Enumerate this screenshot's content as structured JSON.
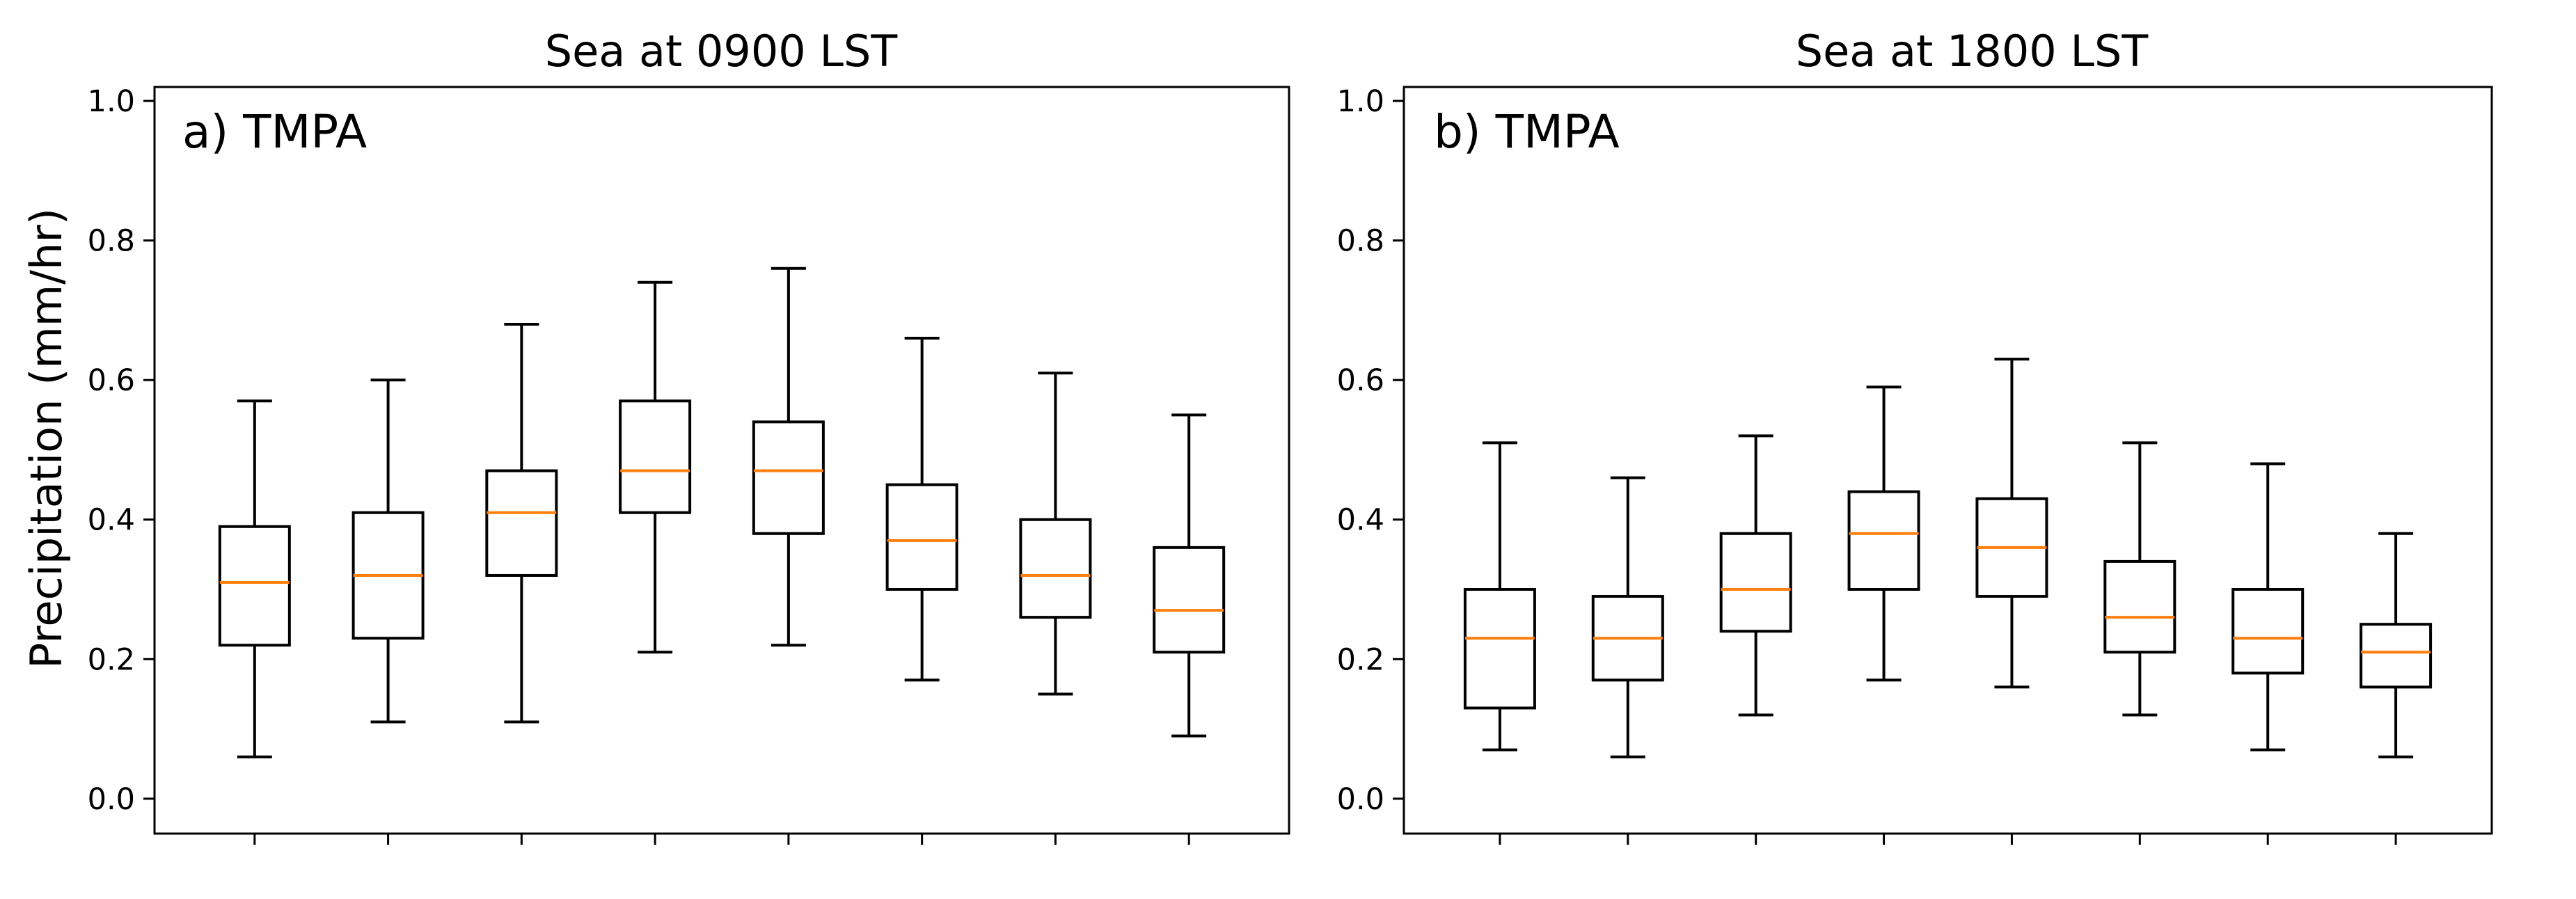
{
  "ylabel": "Precipitation (mm/hr)",
  "chart_data": [
    {
      "type": "box",
      "title": "Sea at 0900 LST",
      "panel_label": "a) TMPA",
      "xlabel": "",
      "ylabel": "Precipitation (mm/hr)",
      "ylim": [
        -0.05,
        1.02
      ],
      "yticks": [
        0.0,
        0.2,
        0.4,
        0.6,
        0.8,
        1.0
      ],
      "ytick_labels": [
        "0.0",
        "0.2",
        "0.4",
        "0.6",
        "0.8",
        "1.0"
      ],
      "n_boxes": 8,
      "boxes": [
        {
          "whislo": 0.06,
          "q1": 0.22,
          "med": 0.31,
          "q3": 0.39,
          "whishi": 0.57
        },
        {
          "whislo": 0.11,
          "q1": 0.23,
          "med": 0.32,
          "q3": 0.41,
          "whishi": 0.6
        },
        {
          "whislo": 0.11,
          "q1": 0.32,
          "med": 0.41,
          "q3": 0.47,
          "whishi": 0.68
        },
        {
          "whislo": 0.21,
          "q1": 0.41,
          "med": 0.47,
          "q3": 0.57,
          "whishi": 0.74
        },
        {
          "whislo": 0.22,
          "q1": 0.38,
          "med": 0.47,
          "q3": 0.54,
          "whishi": 0.76
        },
        {
          "whislo": 0.17,
          "q1": 0.3,
          "med": 0.37,
          "q3": 0.45,
          "whishi": 0.66
        },
        {
          "whislo": 0.15,
          "q1": 0.26,
          "med": 0.32,
          "q3": 0.4,
          "whishi": 0.61
        },
        {
          "whislo": 0.09,
          "q1": 0.21,
          "med": 0.27,
          "q3": 0.36,
          "whishi": 0.55
        }
      ]
    },
    {
      "type": "box",
      "title": "Sea at 1800 LST",
      "panel_label": "b) TMPA",
      "xlabel": "",
      "ylabel": "",
      "ylim": [
        -0.05,
        1.02
      ],
      "yticks": [
        0.0,
        0.2,
        0.4,
        0.6,
        0.8,
        1.0
      ],
      "ytick_labels": [
        "0.0",
        "0.2",
        "0.4",
        "0.6",
        "0.8",
        "1.0"
      ],
      "n_boxes": 8,
      "boxes": [
        {
          "whislo": 0.07,
          "q1": 0.13,
          "med": 0.23,
          "q3": 0.3,
          "whishi": 0.51
        },
        {
          "whislo": 0.06,
          "q1": 0.17,
          "med": 0.23,
          "q3": 0.29,
          "whishi": 0.46
        },
        {
          "whislo": 0.12,
          "q1": 0.24,
          "med": 0.3,
          "q3": 0.38,
          "whishi": 0.52
        },
        {
          "whislo": 0.17,
          "q1": 0.3,
          "med": 0.38,
          "q3": 0.44,
          "whishi": 0.59
        },
        {
          "whislo": 0.16,
          "q1": 0.29,
          "med": 0.36,
          "q3": 0.43,
          "whishi": 0.63
        },
        {
          "whislo": 0.12,
          "q1": 0.21,
          "med": 0.26,
          "q3": 0.34,
          "whishi": 0.51
        },
        {
          "whislo": 0.07,
          "q1": 0.18,
          "med": 0.23,
          "q3": 0.3,
          "whishi": 0.48
        },
        {
          "whislo": 0.06,
          "q1": 0.16,
          "med": 0.21,
          "q3": 0.25,
          "whishi": 0.38
        }
      ]
    }
  ],
  "colors": {
    "box": "#000000",
    "median": "#ff7f0e",
    "axes": "#000000",
    "background": "#ffffff"
  }
}
